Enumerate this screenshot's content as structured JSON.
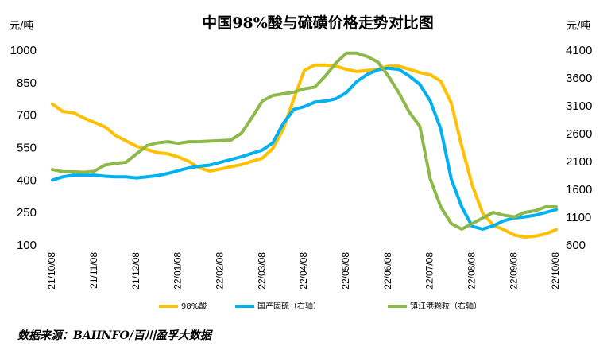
{
  "chart_data": {
    "type": "line",
    "title": "中国98%酸与硫磺价格走势对比图",
    "y_label": "元/吨",
    "y2_label": "元/吨",
    "source": "数据来源：BAIINFO/百川盈孚大数据",
    "categories": [
      "21/10/08",
      null,
      null,
      null,
      "21/11/08",
      null,
      null,
      null,
      "21/12/08",
      null,
      null,
      null,
      "22/01/08",
      null,
      null,
      null,
      "22/02/08",
      null,
      null,
      null,
      "22/03/08",
      null,
      null,
      null,
      "22/04/08",
      null,
      null,
      null,
      "22/05/08",
      null,
      null,
      null,
      "22/06/08",
      null,
      null,
      null,
      "22/07/08",
      null,
      null,
      null,
      "22/08/08",
      null,
      null,
      null,
      "22/09/08",
      null,
      null,
      null,
      "22/10/08"
    ],
    "ylim": [
      100,
      1000
    ],
    "yticks": [
      100,
      250,
      400,
      550,
      700,
      850,
      1000
    ],
    "y2lim": [
      600,
      4100
    ],
    "y2ticks": [
      600,
      1100,
      1600,
      2100,
      2600,
      3100,
      3600,
      4100
    ],
    "grid": false,
    "legend": "bottom",
    "series": [
      {
        "name": "98%酸",
        "color": "#ffc000",
        "axis": "y",
        "values": [
          755,
          720,
          715,
          690,
          670,
          650,
          610,
          585,
          560,
          545,
          530,
          525,
          510,
          490,
          460,
          445,
          455,
          465,
          475,
          490,
          505,
          550,
          640,
          780,
          910,
          935,
          935,
          930,
          915,
          905,
          910,
          915,
          930,
          930,
          915,
          900,
          890,
          860,
          760,
          560,
          380,
          250,
          195,
          175,
          150,
          140,
          145,
          155,
          175
        ]
      },
      {
        "name": "国产固硫（右轴）",
        "color": "#00b0f0",
        "axis": "y2",
        "values": [
          1780,
          1840,
          1870,
          1870,
          1870,
          1850,
          1840,
          1840,
          1820,
          1840,
          1860,
          1900,
          1950,
          2000,
          2030,
          2050,
          2100,
          2150,
          2200,
          2260,
          2320,
          2450,
          2800,
          3050,
          3100,
          3180,
          3200,
          3240,
          3350,
          3550,
          3680,
          3760,
          3790,
          3770,
          3650,
          3500,
          3200,
          2700,
          1800,
          1300,
          950,
          900,
          960,
          1050,
          1100,
          1120,
          1150,
          1200,
          1250
        ]
      },
      {
        "name": "镇江港颗粒（右轴）",
        "color": "#8db94a",
        "axis": "y2",
        "values": [
          1970,
          1930,
          1930,
          1920,
          1940,
          2050,
          2080,
          2100,
          2250,
          2400,
          2450,
          2470,
          2440,
          2470,
          2470,
          2480,
          2490,
          2500,
          2620,
          2900,
          3200,
          3300,
          3330,
          3360,
          3420,
          3450,
          3650,
          3880,
          4060,
          4060,
          4000,
          3900,
          3650,
          3350,
          3000,
          2750,
          1800,
          1300,
          1000,
          900,
          1000,
          1100,
          1200,
          1150,
          1120,
          1200,
          1230,
          1300,
          1300
        ]
      }
    ]
  }
}
